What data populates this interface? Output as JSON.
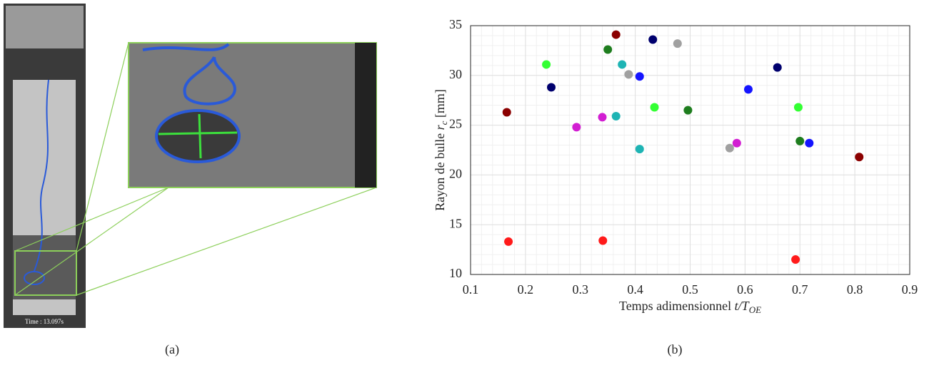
{
  "photo_timestamp": "Time : 13.097s",
  "captions": [
    "(a)",
    "(b)"
  ],
  "chart_data": {
    "type": "scatter",
    "xlabel": {
      "text": "Temps adimensionnel",
      "var": "t/T",
      "sub": "OE"
    },
    "ylabel": {
      "text": "Rayon de bulle",
      "var": "r",
      "sub": "c",
      "unit": "[mm]"
    },
    "xlim": [
      0.1,
      0.9
    ],
    "xticks": [
      0.1,
      0.2,
      0.3,
      0.4,
      0.5,
      0.6,
      0.7,
      0.8,
      0.9
    ],
    "ylim": [
      10,
      35
    ],
    "yticks": [
      10,
      15,
      20,
      25,
      30,
      35
    ],
    "grid": true,
    "minor_grid": true,
    "series": [
      {
        "color": "#8b0000",
        "x": [
          0.166,
          0.365,
          0.808
        ],
        "values": [
          26.3,
          34.1,
          21.8
        ]
      },
      {
        "color": "#ff1a1a",
        "x": [
          0.169,
          0.341,
          0.692
        ],
        "values": [
          13.3,
          13.4,
          11.5
        ]
      },
      {
        "color": "#33ff33",
        "x": [
          0.238,
          0.435,
          0.697
        ],
        "values": [
          31.1,
          26.8,
          26.8
        ]
      },
      {
        "color": "#00006e",
        "x": [
          0.247,
          0.432,
          0.659
        ],
        "values": [
          28.8,
          33.6,
          30.8
        ]
      },
      {
        "color": "#d21ed2",
        "x": [
          0.293,
          0.34,
          0.585
        ],
        "values": [
          24.8,
          25.8,
          23.2
        ]
      },
      {
        "color": "#1e7d1e",
        "x": [
          0.35,
          0.496,
          0.7
        ],
        "values": [
          32.6,
          26.5,
          23.4
        ]
      },
      {
        "color": "#1eb4b4",
        "x": [
          0.365,
          0.376,
          0.408
        ],
        "values": [
          25.9,
          31.1,
          22.6
        ]
      },
      {
        "color": "#a0a0a0",
        "x": [
          0.388,
          0.477,
          0.572
        ],
        "values": [
          30.1,
          33.2,
          22.7
        ]
      },
      {
        "color": "#1414ff",
        "x": [
          0.408,
          0.606,
          0.717
        ],
        "values": [
          29.9,
          28.6,
          23.2
        ]
      }
    ]
  }
}
